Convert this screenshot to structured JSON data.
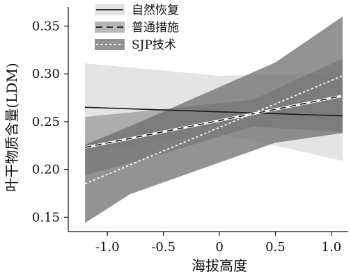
{
  "chart_data": {
    "type": "line",
    "title": "",
    "xlabel": "海拔高度",
    "ylabel": "叶干物质含量(LDM)",
    "xlim": [
      -1.35,
      1.15
    ],
    "ylim": [
      0.135,
      0.37
    ],
    "xticks": [
      -1.0,
      -0.5,
      0,
      0.5,
      1.0
    ],
    "xtick_labels": [
      "-1.0",
      "-0.5",
      "0",
      "0.5",
      "1.0"
    ],
    "yticks": [
      0.15,
      0.2,
      0.25,
      0.3,
      0.35
    ],
    "ytick_labels": [
      "0.15",
      "0.20",
      "0.25",
      "0.30",
      "0.35"
    ],
    "grid": false,
    "legend_position": "top-left",
    "series": [
      {
        "name": "自然恢复",
        "line_style": "solid",
        "line_color": "#1a1a1a",
        "band_color": "#dcdcdc",
        "x": [
          -1.2,
          1.1
        ],
        "values": [
          0.265,
          0.256
        ],
        "band": [
          {
            "x": -1.2,
            "lower": 0.218,
            "upper": 0.311
          },
          {
            "x": 0.0,
            "lower": 0.238,
            "upper": 0.298
          },
          {
            "x": 1.1,
            "lower": 0.209,
            "upper": 0.301
          }
        ]
      },
      {
        "name": "普通措施",
        "line_style": "dashed",
        "line_color": "#1a1a1a",
        "band_color": "#8a8a8a",
        "x": [
          -1.2,
          1.1
        ],
        "values": [
          0.223,
          0.277
        ],
        "band": [
          {
            "x": -1.2,
            "lower": 0.194,
            "upper": 0.255
          },
          {
            "x": -0.6,
            "lower": 0.213,
            "upper": 0.262
          },
          {
            "x": 0.3,
            "lower": 0.245,
            "upper": 0.273
          },
          {
            "x": 1.1,
            "lower": 0.239,
            "upper": 0.316
          }
        ]
      },
      {
        "name": "SJP技术",
        "line_style": "dotted",
        "line_color": "#ffffff",
        "band_color": "#6a6a6a",
        "x": [
          -1.2,
          1.1
        ],
        "values": [
          0.185,
          0.298
        ],
        "band": [
          {
            "x": -1.2,
            "lower": 0.144,
            "upper": 0.226
          },
          {
            "x": -0.8,
            "lower": 0.174,
            "upper": 0.245
          },
          {
            "x": 0.5,
            "lower": 0.228,
            "upper": 0.312
          },
          {
            "x": 1.1,
            "lower": 0.238,
            "upper": 0.36
          }
        ]
      }
    ]
  }
}
